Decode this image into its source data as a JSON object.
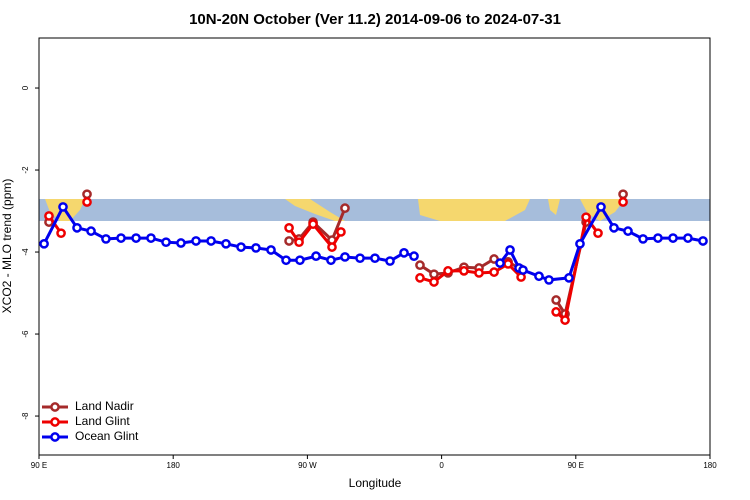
{
  "chart_data": {
    "type": "line",
    "title": "10N-20N October (Ver 11.2)   2014-09-06 to 2024-07-31",
    "xlabel": "Longitude",
    "ylabel": "XCO2 - MLO trend (ppm)",
    "xlim": [
      90,
      540
    ],
    "ylim": [
      -8.95,
      1.22
    ],
    "xticks": [
      {
        "value": 90,
        "label": "90 E"
      },
      {
        "value": 180,
        "label": "180"
      },
      {
        "value": 270,
        "label": "90 W"
      },
      {
        "value": 360,
        "label": "0"
      },
      {
        "value": 450,
        "label": "90 E"
      },
      {
        "value": 540,
        "label": "180"
      }
    ],
    "yticks": [
      0,
      -2,
      -4,
      -6,
      -8
    ],
    "legend": "bottom-left",
    "series": [
      {
        "name": "Land Nadir",
        "color": "#a52a2a",
        "x": [
          96.7,
          null,
          122.2,
          null,
          257.7,
          264.4,
          273.8,
          286.5,
          295.2,
          null,
          345.5,
          354.9,
          364.3,
          375,
          385.1,
          395.2,
          404.6,
          413.3,
          null,
          436.8,
          442.8,
          456.9,
          null,
          481.7
        ],
        "values": [
          -3.27,
          null,
          -2.59,
          null,
          -3.73,
          -3.68,
          -3.27,
          -3.71,
          -2.93,
          null,
          -4.32,
          -4.54,
          -4.51,
          -4.37,
          -4.39,
          -4.17,
          -4.24,
          -4.42,
          null,
          -5.17,
          -5.51,
          -3.27,
          null,
          -2.59
        ]
      },
      {
        "name": "Land Glint",
        "color": "#ee0000",
        "x": [
          96.7,
          104.8,
          null,
          122.2,
          null,
          257.7,
          264.4,
          273.8,
          286.5,
          292.5,
          null,
          345.5,
          354.9,
          364.3,
          375,
          385.1,
          395.2,
          404.6,
          413.3,
          null,
          436.8,
          442.8,
          456.9,
          464.9,
          null,
          481.7
        ],
        "values": [
          -3.12,
          -3.54,
          null,
          -2.78,
          null,
          -3.41,
          -3.76,
          -3.32,
          -3.88,
          -3.51,
          null,
          -4.63,
          -4.73,
          -4.46,
          -4.46,
          -4.51,
          -4.49,
          -4.29,
          -4.61,
          null,
          -5.46,
          -5.66,
          -3.15,
          -3.54,
          null,
          -2.78
        ]
      },
      {
        "name": "Ocean Glint",
        "color": "#0000ee",
        "x": [
          93.4,
          106.1,
          115.5,
          124.9,
          134.9,
          145,
          155.1,
          165.1,
          175.2,
          185.2,
          195.3,
          205.4,
          215.4,
          225.5,
          235.5,
          245.6,
          255.7,
          265,
          275.8,
          285.8,
          295.2,
          305.3,
          315.3,
          325.4,
          334.8,
          341.5,
          null,
          399.2,
          405.9,
          411.9,
          414.6,
          425.3,
          432,
          445.4,
          452.8,
          466.9,
          475.6,
          485,
          495.1,
          505.1,
          515.2,
          525.2,
          535.3
        ],
        "values": [
          -3.8,
          -2.9,
          -3.41,
          -3.49,
          -3.68,
          -3.66,
          -3.66,
          -3.66,
          -3.76,
          -3.78,
          -3.73,
          -3.73,
          -3.8,
          -3.88,
          -3.9,
          -3.95,
          -4.2,
          -4.2,
          -4.1,
          -4.2,
          -4.12,
          -4.15,
          -4.15,
          -4.22,
          -4.02,
          -4.1,
          null,
          -4.27,
          -3.95,
          -4.39,
          -4.44,
          -4.59,
          -4.68,
          -4.63,
          -3.8,
          -2.9,
          -3.41,
          -3.49,
          -3.68,
          -3.66,
          -3.66,
          -3.66,
          -3.73
        ]
      }
    ]
  }
}
